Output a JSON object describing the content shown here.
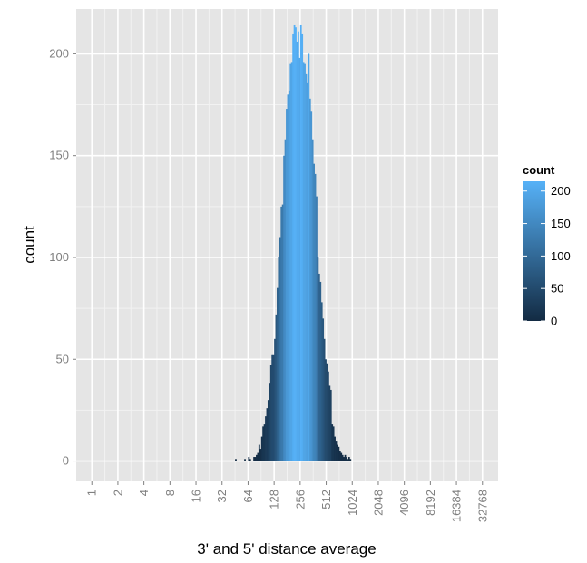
{
  "chart_data": {
    "type": "bar",
    "title": "",
    "xlabel": "3' and 5' distance average",
    "ylabel": "count",
    "x_scale": "log2",
    "x_range_log2": [
      -0.6,
      15.6
    ],
    "ylim": [
      -10,
      222
    ],
    "grid": true,
    "y_ticks": [
      0,
      50,
      100,
      150,
      200
    ],
    "y_tick_labels": [
      "0",
      "50",
      "100",
      "150",
      "200"
    ],
    "x_ticks": [
      1,
      2,
      4,
      8,
      16,
      32,
      64,
      128,
      256,
      512,
      1024,
      2048,
      4096,
      8192,
      16384,
      32768
    ],
    "x_tick_labels": [
      "1",
      "2",
      "4",
      "8",
      "16",
      "32",
      "64",
      "128",
      "256",
      "512",
      "1024",
      "2048",
      "4096",
      "8192",
      "16384",
      "32768"
    ],
    "fill_mapped_to": "count",
    "legend": {
      "title": "count",
      "position": "right",
      "labels": [
        "200",
        "150",
        "100",
        "50",
        "0"
      ],
      "values": [
        200,
        150,
        100,
        50,
        0
      ],
      "range": [
        0,
        215
      ],
      "color_low": "#132B43",
      "color_high": "#56B1F7"
    },
    "bin_width_log2": 0.05,
    "bin_start_log2": 5.5,
    "counts": [
      1,
      0,
      0,
      0,
      0,
      0,
      0,
      1,
      0,
      0,
      2,
      1,
      0,
      0,
      2,
      2,
      3,
      4,
      8,
      6,
      12,
      17,
      18,
      22,
      26,
      30,
      38,
      47,
      52,
      52,
      60,
      72,
      85,
      100,
      110,
      125,
      126,
      150,
      158,
      173,
      180,
      182,
      195,
      196,
      210,
      214,
      213,
      206,
      211,
      198,
      214,
      210,
      196,
      195,
      190,
      186,
      200,
      178,
      172,
      158,
      146,
      141,
      130,
      100,
      92,
      88,
      78,
      70,
      60,
      50,
      48,
      44,
      37,
      35,
      18,
      17,
      12,
      10,
      8,
      7,
      5,
      4,
      3,
      2,
      3,
      2,
      1,
      2,
      1
    ]
  }
}
